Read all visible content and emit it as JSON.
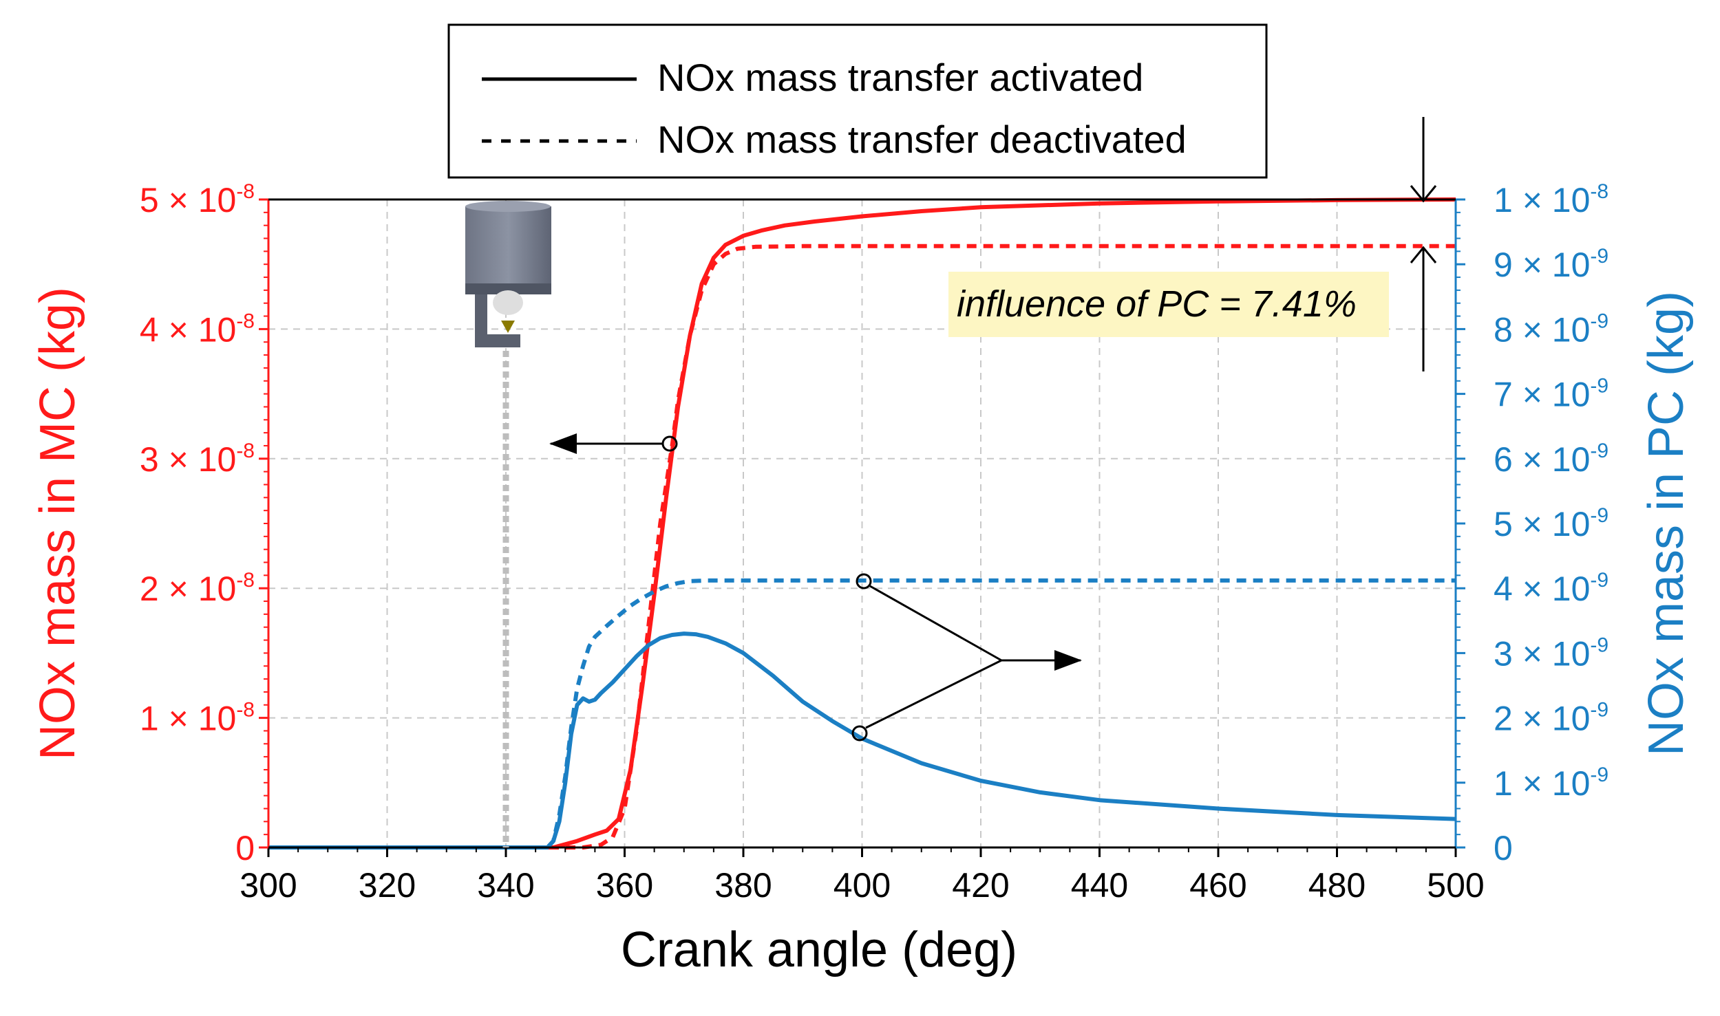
{
  "chart_data": {
    "type": "line",
    "xlabel": "Crank angle (deg)",
    "ylabel_left": "NOx mass in MC (kg)",
    "ylabel_right": "NOx mass in PC (kg)",
    "xlim": [
      300,
      500
    ],
    "ylim_left": [
      0,
      5e-08
    ],
    "ylim_right": [
      0,
      1e-08
    ],
    "x_ticks": [
      300,
      320,
      340,
      360,
      380,
      400,
      420,
      440,
      460,
      480,
      500
    ],
    "y_left_ticks": [
      {
        "value": 0,
        "label": "0"
      },
      {
        "value": 1e-08,
        "mant": "1 × 10",
        "exp": "-8"
      },
      {
        "value": 2e-08,
        "mant": "2 × 10",
        "exp": "-8"
      },
      {
        "value": 3e-08,
        "mant": "3 × 10",
        "exp": "-8"
      },
      {
        "value": 4e-08,
        "mant": "4 × 10",
        "exp": "-8"
      },
      {
        "value": 5e-08,
        "mant": "5 × 10",
        "exp": "-8"
      }
    ],
    "y_right_ticks": [
      {
        "value": 0,
        "label": "0"
      },
      {
        "value": 1e-09,
        "mant": "1 × 10",
        "exp": "-9"
      },
      {
        "value": 2e-09,
        "mant": "2 × 10",
        "exp": "-9"
      },
      {
        "value": 3e-09,
        "mant": "3 × 10",
        "exp": "-9"
      },
      {
        "value": 4e-09,
        "mant": "4 × 10",
        "exp": "-9"
      },
      {
        "value": 5e-09,
        "mant": "5 × 10",
        "exp": "-9"
      },
      {
        "value": 6e-09,
        "mant": "6 × 10",
        "exp": "-9"
      },
      {
        "value": 7e-09,
        "mant": "7 × 10",
        "exp": "-9"
      },
      {
        "value": 8e-09,
        "mant": "8 × 10",
        "exp": "-9"
      },
      {
        "value": 9e-09,
        "mant": "9 × 10",
        "exp": "-9"
      },
      {
        "value": 1e-08,
        "mant": "1 × 10",
        "exp": "-8"
      }
    ],
    "legend": {
      "activated": "NOx mass transfer activated",
      "deactivated": "NOx mass transfer deactivated"
    },
    "annotation": "influence of PC = 7.41%",
    "spark_timing_deg": 340,
    "colors": {
      "mc": "#ff1a1a",
      "pc": "#1b7fc4",
      "axis": "#000000",
      "grid": "#c8c8c8",
      "annotation_bg": "#fdf6c3",
      "spark": "#bdbdbd"
    },
    "series": [
      {
        "name": "MC activated",
        "axis": "left",
        "style": "solid",
        "color": "#ff1a1a",
        "x": [
          300,
          340,
          348,
          352,
          355,
          357,
          359,
          361,
          363,
          365,
          367,
          368,
          369,
          371,
          373,
          375,
          377,
          380,
          383,
          387,
          392,
          400,
          410,
          420,
          440,
          460,
          480,
          500
        ],
        "y": [
          0,
          0,
          0,
          5e-10,
          1e-09,
          1.3e-09,
          2.2e-09,
          6e-09,
          1.25e-08,
          1.95e-08,
          2.7e-08,
          3.05e-08,
          3.4e-08,
          3.95e-08,
          4.35e-08,
          4.55e-08,
          4.65e-08,
          4.72e-08,
          4.76e-08,
          4.8e-08,
          4.83e-08,
          4.87e-08,
          4.91e-08,
          4.94e-08,
          4.97e-08,
          4.985e-08,
          4.995e-08,
          5e-08
        ]
      },
      {
        "name": "MC deactivated",
        "axis": "left",
        "style": "dashed",
        "color": "#ff1a1a",
        "x": [
          300,
          353,
          356,
          358,
          360,
          362,
          364,
          366,
          368,
          369,
          371,
          373,
          375,
          377,
          379,
          382,
          390,
          420,
          460,
          500
        ],
        "y": [
          0,
          0,
          2e-10,
          8e-10,
          3e-09,
          9e-09,
          1.7e-08,
          2.5e-08,
          3.1e-08,
          3.45e-08,
          3.95e-08,
          4.3e-08,
          4.5e-08,
          4.58e-08,
          4.62e-08,
          4.635e-08,
          4.64e-08,
          4.64e-08,
          4.64e-08,
          4.64e-08
        ]
      },
      {
        "name": "PC activated",
        "axis": "right",
        "style": "solid",
        "color": "#1b7fc4",
        "x": [
          300,
          347,
          348,
          349,
          350,
          351,
          352,
          353,
          354,
          355,
          356,
          358,
          360,
          362,
          364,
          366,
          368,
          370,
          372,
          374,
          377,
          380,
          385,
          390,
          395,
          400,
          410,
          420,
          430,
          440,
          460,
          480,
          500
        ],
        "y": [
          0,
          0,
          1e-10,
          4e-10,
          1e-09,
          1.75e-09,
          2.2e-09,
          2.3e-09,
          2.25e-09,
          2.28e-09,
          2.38e-09,
          2.55e-09,
          2.75e-09,
          2.95e-09,
          3.12e-09,
          3.23e-09,
          3.28e-09,
          3.3e-09,
          3.29e-09,
          3.25e-09,
          3.15e-09,
          3e-09,
          2.65e-09,
          2.25e-09,
          1.95e-09,
          1.68e-09,
          1.3e-09,
          1.03e-09,
          8.5e-10,
          7.3e-10,
          6e-10,
          5e-10,
          4.4e-10
        ]
      },
      {
        "name": "PC deactivated",
        "axis": "right",
        "style": "dashed",
        "color": "#1b7fc4",
        "x": [
          300,
          347,
          348,
          349,
          350,
          351,
          352,
          353,
          354,
          355,
          357,
          359,
          361,
          363,
          365,
          367,
          369,
          371,
          374,
          380,
          400,
          450,
          500
        ],
        "y": [
          0,
          0,
          1e-10,
          5e-10,
          1.1e-09,
          1.85e-09,
          2.45e-09,
          2.8e-09,
          3.1e-09,
          3.25e-09,
          3.42e-09,
          3.58e-09,
          3.73e-09,
          3.85e-09,
          3.95e-09,
          4.03e-09,
          4.08e-09,
          4.11e-09,
          4.12e-09,
          4.12e-09,
          4.12e-09,
          4.12e-09,
          4.12e-09
        ]
      }
    ]
  }
}
